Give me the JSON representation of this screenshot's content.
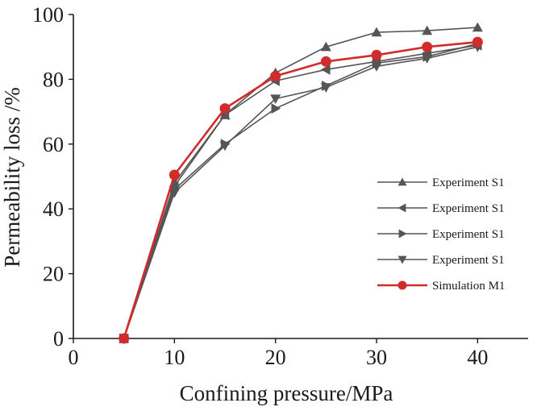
{
  "chart_data": {
    "type": "line",
    "title": "",
    "xlabel": "Confining pressure/MPa",
    "ylabel": "Permeability loss /%",
    "xlim": [
      0,
      45
    ],
    "ylim": [
      0,
      100
    ],
    "xticks": [
      0,
      10,
      20,
      30,
      40
    ],
    "yticks": [
      0,
      20,
      40,
      60,
      80,
      100
    ],
    "grid": false,
    "legend_position": "lower-right",
    "x": [
      5,
      10,
      15,
      20,
      25,
      30,
      35,
      40
    ],
    "series": [
      {
        "name": "Experiment S1",
        "marker": "triangle-up",
        "color": "#555555",
        "values": [
          0,
          48,
          69,
          82,
          90,
          94.5,
          95,
          96
        ]
      },
      {
        "name": "Experiment S1",
        "marker": "triangle-left",
        "color": "#555555",
        "values": [
          0,
          47,
          69,
          79.5,
          83,
          85.5,
          88,
          90.5
        ]
      },
      {
        "name": "Experiment S1",
        "marker": "triangle-right",
        "color": "#555555",
        "values": [
          0,
          46,
          60,
          71,
          78,
          85,
          87,
          91
        ]
      },
      {
        "name": "Experiment S1",
        "marker": "triangle-down",
        "color": "#555555",
        "values": [
          0,
          45,
          59.5,
          74,
          77.5,
          84,
          86.5,
          90
        ]
      },
      {
        "name": "Simulation M1",
        "marker": "circle",
        "color": "#d22b2b",
        "values": [
          0,
          50.5,
          71,
          81,
          85.5,
          87.5,
          90,
          91.5
        ]
      }
    ]
  }
}
